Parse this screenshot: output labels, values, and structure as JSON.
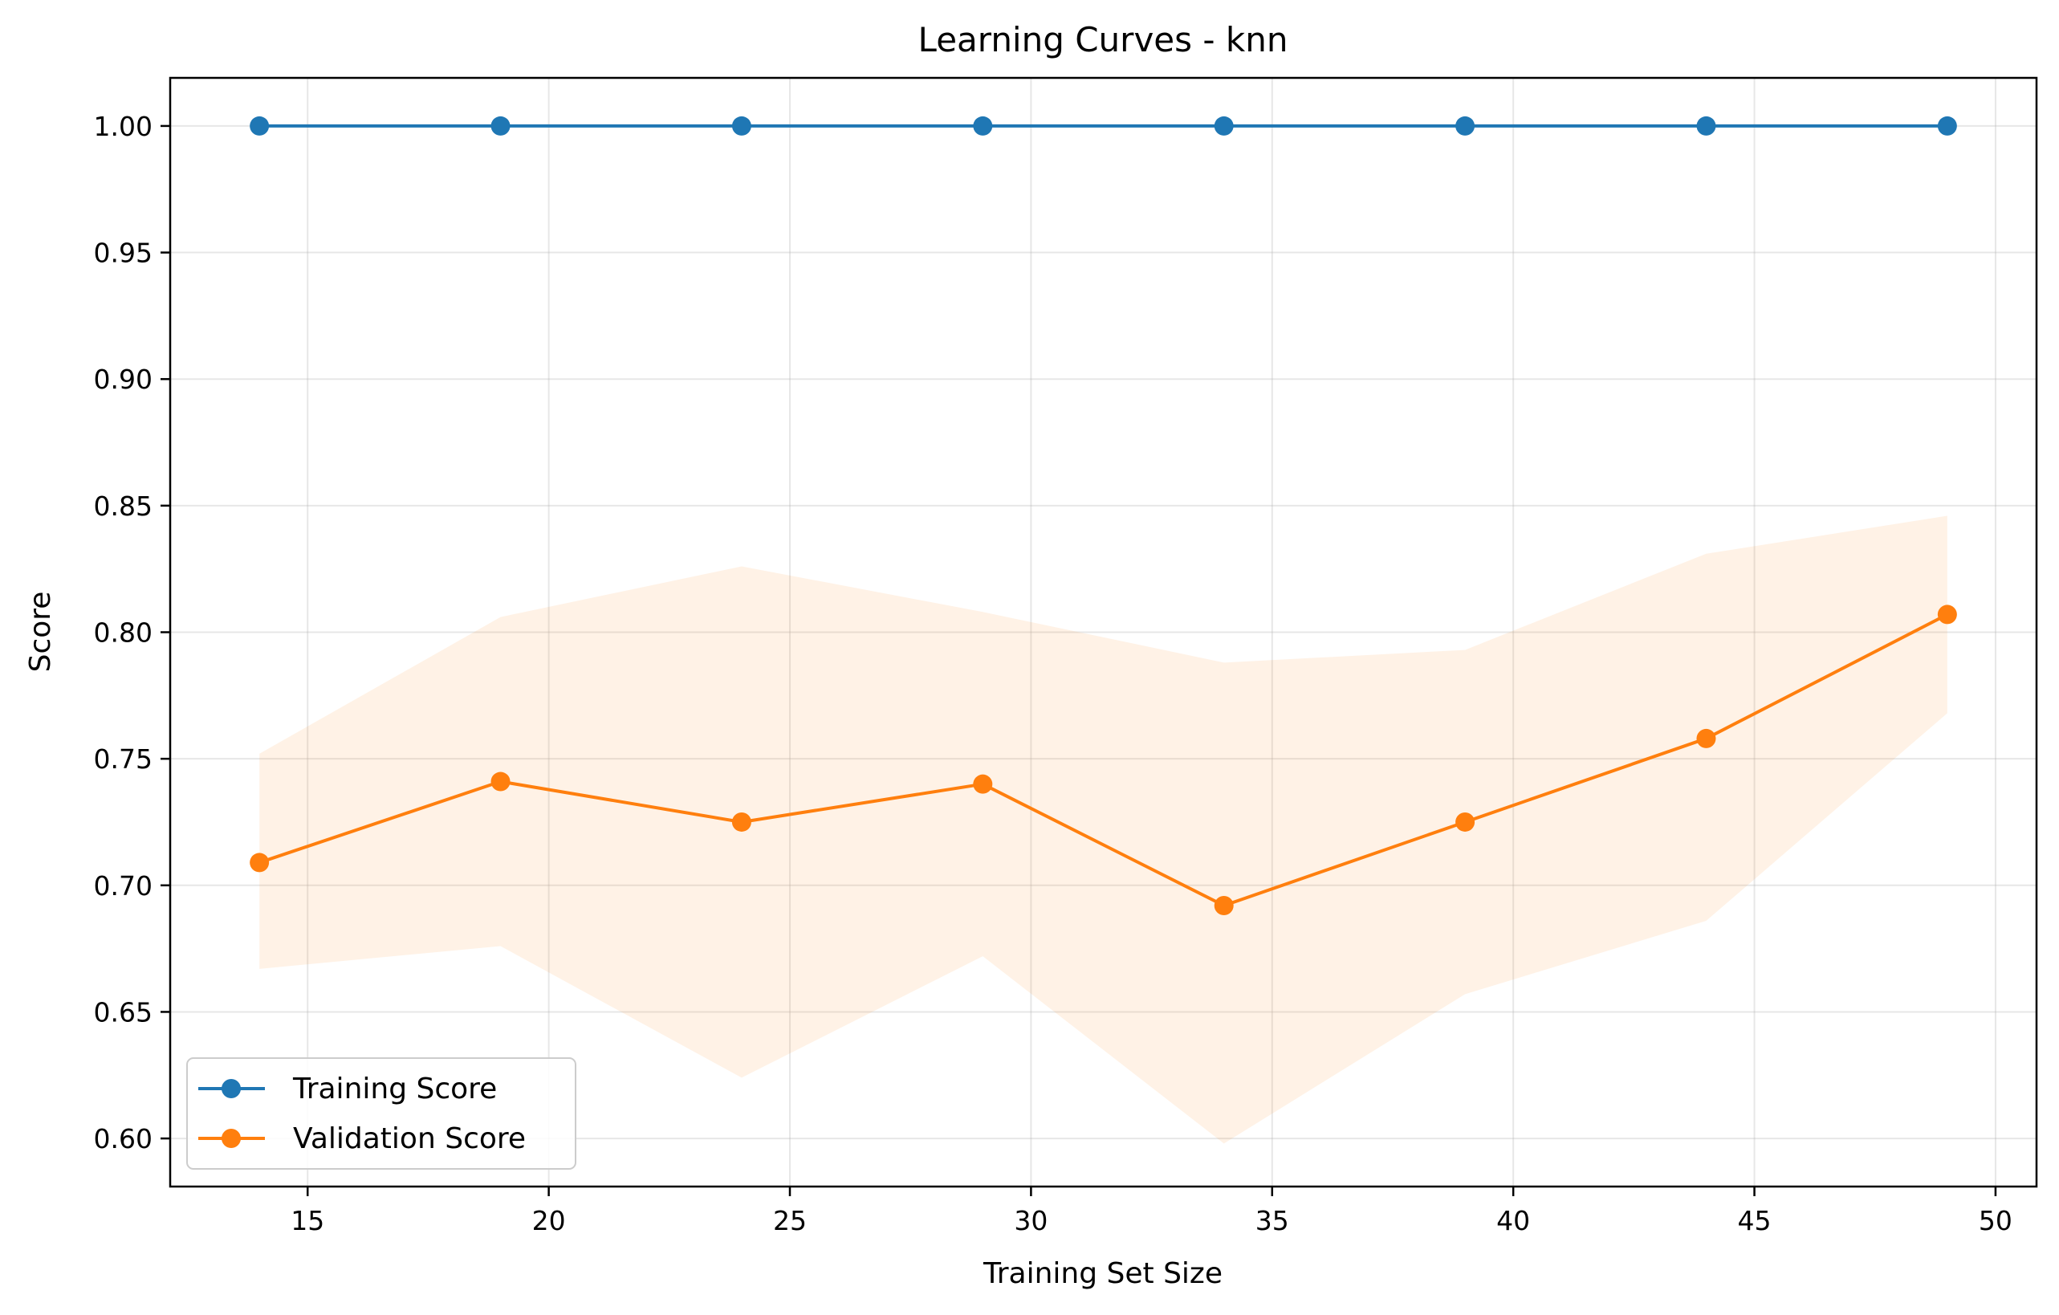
{
  "chart_data": {
    "type": "line",
    "title": "Learning Curves - knn",
    "xlabel": "Training Set Size",
    "ylabel": "Score",
    "x": [
      14,
      19,
      24,
      29,
      34,
      39,
      44,
      49
    ],
    "xlim": [
      12.15,
      50.85
    ],
    "ylim": [
      0.581,
      1.019
    ],
    "xticks": [
      15,
      20,
      25,
      30,
      35,
      40,
      45,
      50
    ],
    "xtick_labels": [
      "15",
      "20",
      "25",
      "30",
      "35",
      "40",
      "45",
      "50"
    ],
    "yticks": [
      0.6,
      0.65,
      0.7,
      0.75,
      0.8,
      0.85,
      0.9,
      0.95,
      1.0
    ],
    "ytick_labels": [
      "0.60",
      "0.65",
      "0.70",
      "0.75",
      "0.80",
      "0.85",
      "0.90",
      "0.95",
      "1.00"
    ],
    "grid": true,
    "legend_position": "lower-left",
    "series": [
      {
        "name": "Training Score",
        "color": "#1f77b4",
        "values": [
          1.0,
          1.0,
          1.0,
          1.0,
          1.0,
          1.0,
          1.0,
          1.0
        ],
        "band_lower": [
          1.0,
          1.0,
          1.0,
          1.0,
          1.0,
          1.0,
          1.0,
          1.0
        ],
        "band_upper": [
          1.0,
          1.0,
          1.0,
          1.0,
          1.0,
          1.0,
          1.0,
          1.0
        ]
      },
      {
        "name": "Validation Score",
        "color": "#ff7f0e",
        "values": [
          0.709,
          0.741,
          0.725,
          0.74,
          0.692,
          0.725,
          0.758,
          0.807
        ],
        "band_lower": [
          0.667,
          0.676,
          0.624,
          0.672,
          0.598,
          0.657,
          0.686,
          0.768
        ],
        "band_upper": [
          0.752,
          0.806,
          0.826,
          0.808,
          0.788,
          0.793,
          0.831,
          0.846
        ]
      }
    ]
  }
}
